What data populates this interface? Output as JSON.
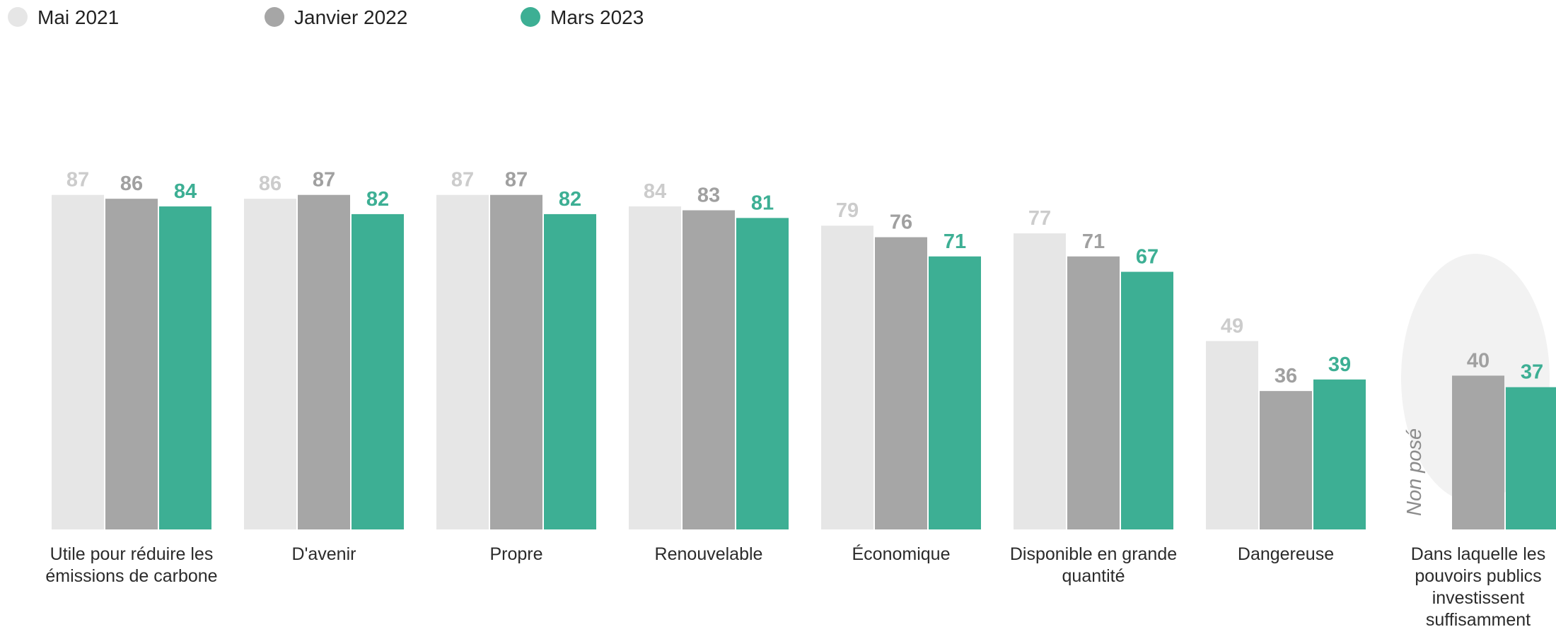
{
  "chart_data": {
    "type": "bar",
    "categories": [
      "Utile pour réduire les émissions de carbone",
      "D'avenir",
      "Propre",
      "Renouvelable",
      "Économique",
      "Disponible en grande quantité",
      "Dangereuse",
      "Dans laquelle les pouvoirs publics investissent suffisamment"
    ],
    "series": [
      {
        "name": "Mai 2021",
        "color": "#e6e6e6",
        "label_color": "#cccccc",
        "values": [
          87,
          86,
          87,
          84,
          79,
          77,
          49,
          null
        ]
      },
      {
        "name": "Janvier 2022",
        "color": "#a6a6a6",
        "label_color": "#a0a0a0",
        "values": [
          86,
          87,
          87,
          83,
          76,
          71,
          36,
          40
        ]
      },
      {
        "name": "Mars 2023",
        "color": "#3daf94",
        "label_color": "#3daf94",
        "values": [
          84,
          82,
          82,
          81,
          71,
          67,
          39,
          37
        ]
      }
    ],
    "ylim": [
      0,
      100
    ],
    "grid": false,
    "legend_position": "top-left",
    "annotations": [
      {
        "text": "Non posé",
        "category_index": 7,
        "series": "Mai 2021"
      }
    ]
  }
}
